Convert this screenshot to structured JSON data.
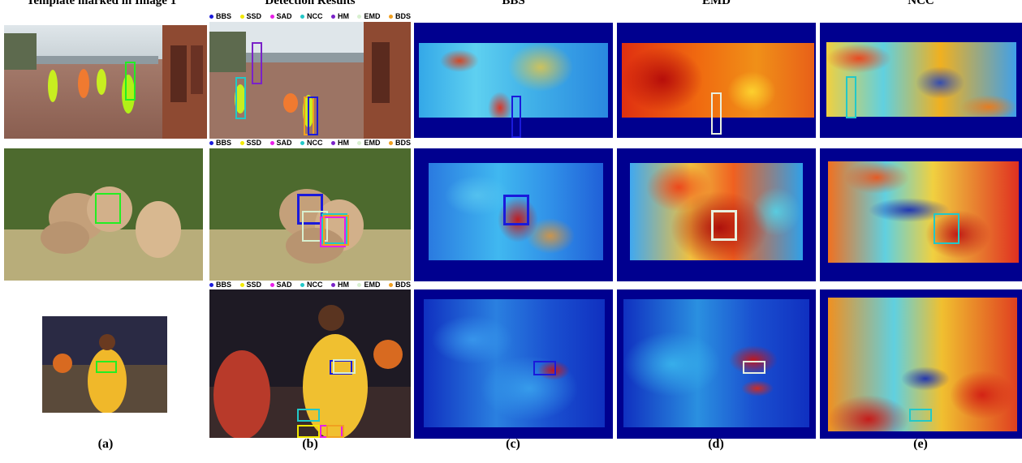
{
  "headers": {
    "col_a": "Template marked in Image 1",
    "col_b": "Detection Results",
    "col_c": "BBS",
    "col_d": "EMD",
    "col_e": "NCC"
  },
  "captions": [
    "(a)",
    "(b)",
    "(c)",
    "(d)",
    "(e)"
  ],
  "legend": [
    {
      "label": "BBS",
      "color": "#1a1adb"
    },
    {
      "label": "SSD",
      "color": "#f2e900"
    },
    {
      "label": "SAD",
      "color": "#e81ee8"
    },
    {
      "label": "NCC",
      "color": "#22c8c8"
    },
    {
      "label": "HM",
      "color": "#7a22c8"
    },
    {
      "label": "EMD",
      "color": "#d8f0d0"
    },
    {
      "label": "BDS",
      "color": "#f0a020"
    }
  ],
  "colors": {
    "template_box": "#22ee22",
    "heat_background": "#00008f"
  }
}
